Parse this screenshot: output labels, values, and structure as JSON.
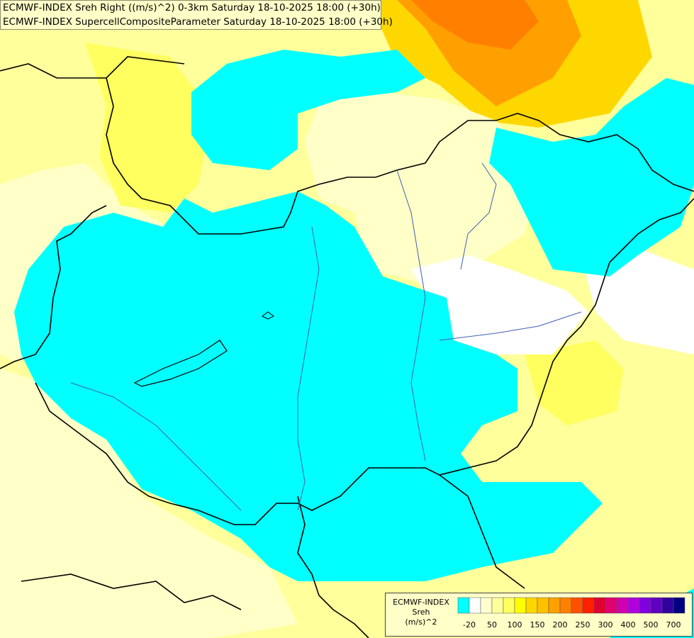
{
  "header": {
    "line1": "ECMWF-INDEX Sreh Right ((m/s)^2) 0-3km Saturday 18-10-2025 18:00 (+30h)",
    "line2": "ECMWF-INDEX SupercellCompositeParameter Saturday 18-10-2025 18:00 (+30h)"
  },
  "legend": {
    "title1": "ECMWF-INDEX",
    "title2": "Sreh",
    "title3": "(m/s)^2",
    "labels": [
      "-20",
      "50",
      "100",
      "150",
      "200",
      "250",
      "300",
      "400",
      "500",
      "700"
    ],
    "colors": [
      "#00ffff",
      "#ffffff",
      "#ffffd0",
      "#ffff9c",
      "#ffff60",
      "#ffff00",
      "#ffd700",
      "#ffc000",
      "#ffa000",
      "#ff8000",
      "#ff5000",
      "#ff2000",
      "#e00030",
      "#e00070",
      "#d000b0",
      "#b000e0",
      "#8000e0",
      "#6000c0",
      "#3000a0",
      "#000080"
    ]
  },
  "colors": {
    "cyan": "#00ffff",
    "paleYellow": "#ffff9c",
    "lightYellow": "#ffffc8",
    "yellow": "#ffff00",
    "orange": "#ffa000",
    "border": "#000000",
    "river": "#4060b0"
  }
}
